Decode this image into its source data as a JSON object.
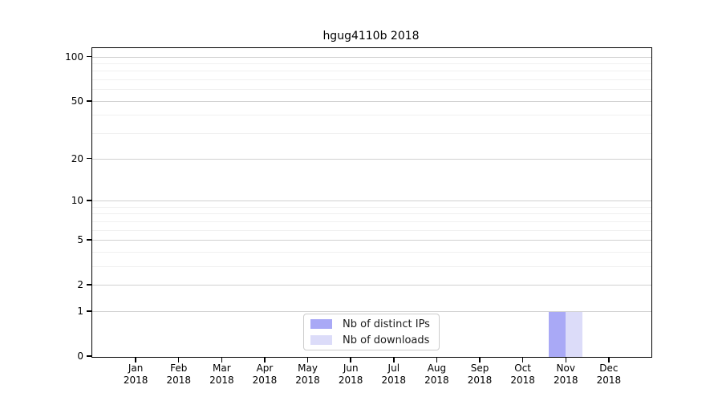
{
  "chart_data": {
    "type": "bar",
    "title": "hgug4110b 2018",
    "categories": [
      "Jan",
      "Feb",
      "Mar",
      "Apr",
      "May",
      "Jun",
      "Jul",
      "Aug",
      "Sep",
      "Oct",
      "Nov",
      "Dec"
    ],
    "category_year": "2018",
    "series": [
      {
        "name": "Nb of distinct IPs",
        "color": "#a9a9f6",
        "values": [
          0,
          0,
          0,
          0,
          0,
          0,
          0,
          0,
          0,
          0,
          1,
          0
        ]
      },
      {
        "name": "Nb of downloads",
        "color": "#dcdcf9",
        "values": [
          0,
          0,
          0,
          0,
          0,
          0,
          0,
          0,
          0,
          0,
          1,
          0
        ]
      }
    ],
    "yscale": "log10(1+x)",
    "ylim": [
      0,
      100
    ],
    "yticks": [
      0,
      1,
      2,
      5,
      10,
      20,
      50,
      100
    ],
    "gridlines": {
      "major": [
        1,
        2,
        5,
        10,
        20,
        50,
        100
      ],
      "minor": [
        3,
        4,
        6,
        7,
        8,
        9,
        30,
        40,
        60,
        70,
        80,
        90
      ]
    },
    "grid": "on",
    "legend_position": "bottom-center-inside",
    "xlabel": "",
    "ylabel": ""
  },
  "colors": {
    "background": "#ffffff",
    "axis": "#000000",
    "grid_major": "#d0d0d0",
    "grid_minor": "#f0f0f0",
    "legend_border": "#cccccc",
    "bar_distinct_ips": "#a9a9f6",
    "bar_downloads": "#dcdcf9"
  }
}
